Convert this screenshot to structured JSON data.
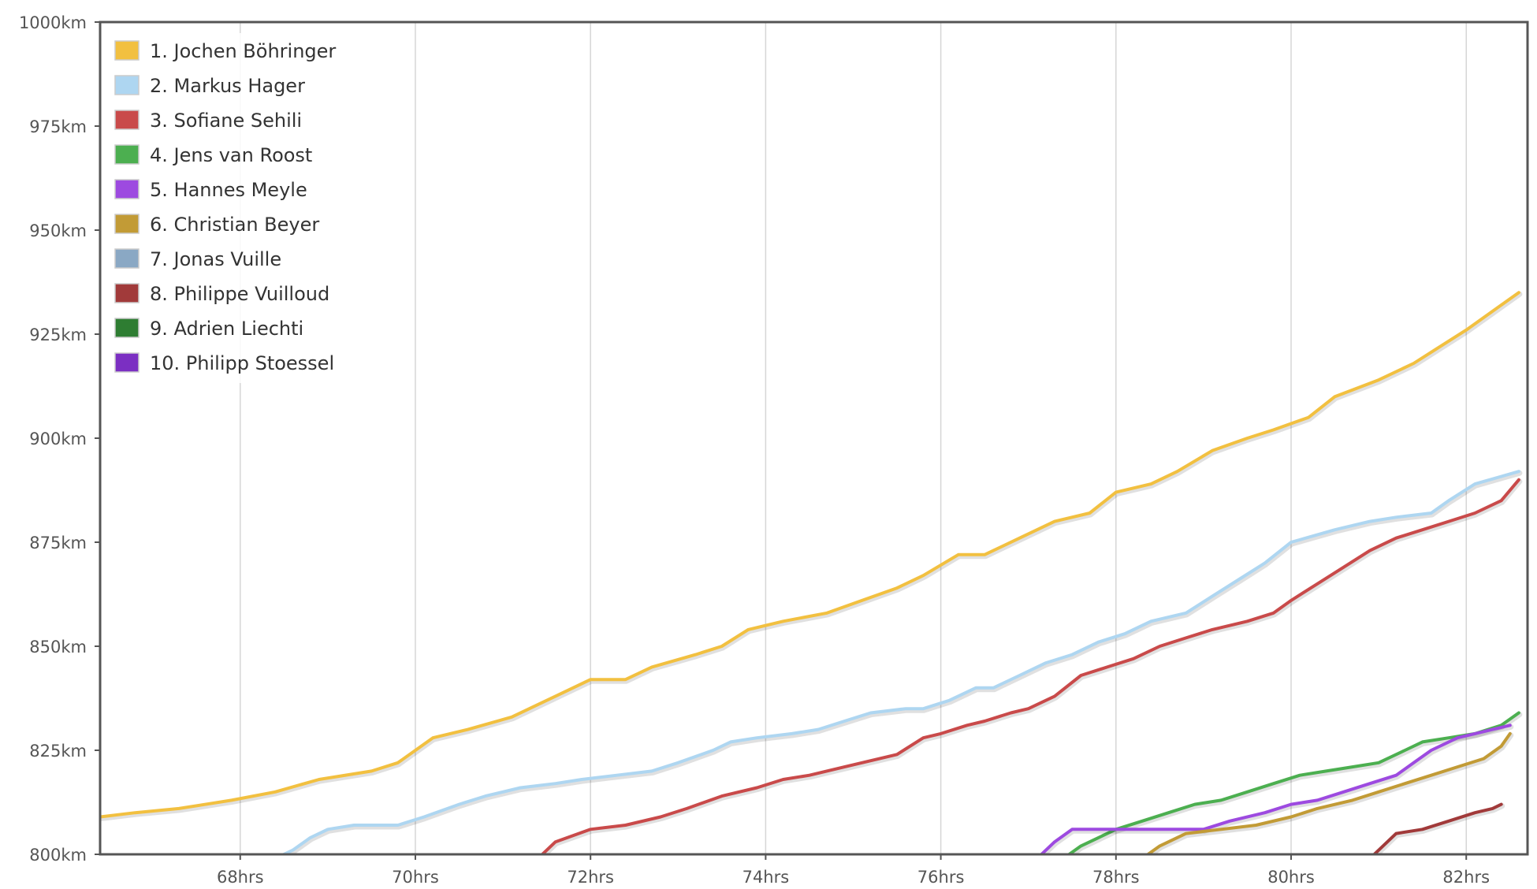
{
  "chart_data": {
    "type": "line",
    "title": "",
    "xlabel": "",
    "ylabel": "",
    "x_unit": "hrs",
    "y_unit": "km",
    "xlim": [
      66.4,
      82.7
    ],
    "ylim": [
      800,
      1000
    ],
    "x_ticks": [
      68,
      70,
      72,
      74,
      76,
      78,
      80,
      82
    ],
    "x_tick_labels": [
      "68hrs",
      "70hrs",
      "72hrs",
      "74hrs",
      "76hrs",
      "78hrs",
      "80hrs",
      "82hrs"
    ],
    "y_ticks": [
      800,
      825,
      850,
      875,
      900,
      925,
      950,
      975,
      1000
    ],
    "y_tick_labels": [
      "800km",
      "825km",
      "850km",
      "875km",
      "900km",
      "925km",
      "950km",
      "975km",
      "1000km"
    ],
    "grid": "vertical",
    "legend_position": "top-left",
    "series": [
      {
        "name": "1. Jochen Böhringer",
        "color": "#f2c040",
        "x": [
          66.4,
          66.8,
          67.3,
          67.9,
          68.4,
          68.9,
          69.5,
          69.8,
          70.2,
          70.6,
          71.1,
          71.6,
          72.0,
          72.4,
          72.7,
          73.2,
          73.5,
          73.8,
          74.2,
          74.7,
          75.1,
          75.5,
          75.8,
          76.2,
          76.5,
          76.9,
          77.3,
          77.7,
          78.0,
          78.4,
          78.7,
          79.1,
          79.5,
          79.8,
          80.2,
          80.5,
          81.0,
          81.4,
          81.7,
          82.0,
          82.6
        ],
        "y": [
          809,
          810,
          811,
          813,
          815,
          818,
          820,
          822,
          828,
          830,
          833,
          838,
          842,
          842,
          845,
          848,
          850,
          854,
          856,
          858,
          861,
          864,
          867,
          872,
          872,
          876,
          880,
          882,
          887,
          889,
          892,
          897,
          900,
          902,
          905,
          910,
          914,
          918,
          922,
          926,
          935
        ]
      },
      {
        "name": "2. Markus Hager",
        "color": "#aed6f1",
        "x": [
          68.4,
          68.6,
          68.8,
          69.0,
          69.3,
          69.8,
          70.1,
          70.5,
          70.8,
          71.2,
          71.6,
          71.9,
          72.3,
          72.7,
          73.0,
          73.4,
          73.6,
          73.9,
          74.3,
          74.6,
          74.9,
          75.2,
          75.6,
          75.8,
          76.1,
          76.4,
          76.6,
          76.9,
          77.2,
          77.5,
          77.8,
          78.1,
          78.4,
          78.8,
          79.1,
          79.4,
          79.7,
          80.0,
          80.5,
          80.9,
          81.2,
          81.6,
          81.8,
          82.1,
          82.6
        ],
        "y": [
          799,
          801,
          804,
          806,
          807,
          807,
          809,
          812,
          814,
          816,
          817,
          818,
          819,
          820,
          822,
          825,
          827,
          828,
          829,
          830,
          832,
          834,
          835,
          835,
          837,
          840,
          840,
          843,
          846,
          848,
          851,
          853,
          856,
          858,
          862,
          866,
          870,
          875,
          878,
          880,
          881,
          882,
          885,
          889,
          892
        ]
      },
      {
        "name": "3. Sofiane Sehili",
        "color": "#c94a4a",
        "x": [
          71.4,
          71.6,
          72.0,
          72.4,
          72.8,
          73.1,
          73.5,
          73.9,
          74.2,
          74.5,
          74.9,
          75.3,
          75.5,
          75.8,
          76.0,
          76.3,
          76.5,
          76.8,
          77.0,
          77.3,
          77.6,
          77.9,
          78.2,
          78.5,
          78.8,
          79.1,
          79.5,
          79.8,
          80.0,
          80.3,
          80.6,
          80.9,
          81.2,
          81.5,
          81.8,
          82.1,
          82.4,
          82.6
        ],
        "y": [
          799,
          803,
          806,
          807,
          809,
          811,
          814,
          816,
          818,
          819,
          821,
          823,
          824,
          828,
          829,
          831,
          832,
          834,
          835,
          838,
          843,
          845,
          847,
          850,
          852,
          854,
          856,
          858,
          861,
          865,
          869,
          873,
          876,
          878,
          880,
          882,
          885,
          890
        ]
      },
      {
        "name": "4. Jens van Roost",
        "color": "#4caf50",
        "x": [
          77.4,
          77.6,
          77.8,
          78.0,
          78.3,
          78.6,
          78.9,
          79.2,
          79.5,
          79.8,
          80.1,
          80.4,
          80.7,
          81.0,
          81.3,
          81.5,
          81.8,
          82.1,
          82.4,
          82.6
        ],
        "y": [
          799,
          802,
          804,
          806,
          808,
          810,
          812,
          813,
          815,
          817,
          819,
          820,
          821,
          822,
          825,
          827,
          828,
          829,
          831,
          834
        ]
      },
      {
        "name": "5. Hannes Meyle",
        "color": "#9d4ae0",
        "x": [
          77.1,
          77.3,
          77.5,
          78.0,
          78.5,
          79.0,
          79.3,
          79.7,
          80.0,
          80.3,
          80.6,
          80.9,
          81.2,
          81.4,
          81.6,
          81.9,
          82.1,
          82.3,
          82.5
        ],
        "y": [
          799,
          803,
          806,
          806,
          806,
          806,
          808,
          810,
          812,
          813,
          815,
          817,
          819,
          822,
          825,
          828,
          829,
          830,
          831
        ]
      },
      {
        "name": "6. Christian Beyer",
        "color": "#c29b36",
        "x": [
          78.3,
          78.5,
          78.8,
          79.2,
          79.6,
          80.0,
          80.3,
          80.7,
          81.0,
          81.3,
          81.6,
          81.9,
          82.2,
          82.4,
          82.5
        ],
        "y": [
          799,
          802,
          805,
          806,
          807,
          809,
          811,
          813,
          815,
          817,
          819,
          821,
          823,
          826,
          829
        ]
      },
      {
        "name": "7. Jonas Vuille",
        "color": "#8aa8c4",
        "x": [],
        "y": []
      },
      {
        "name": "8. Philippe Vuilloud",
        "color": "#a13a3a",
        "x": [
          80.9,
          81.2,
          81.5,
          81.8,
          82.1,
          82.3,
          82.4
        ],
        "y": [
          799,
          805,
          806,
          808,
          810,
          811,
          812
        ]
      },
      {
        "name": "9. Adrien Liechti",
        "color": "#2e7d32",
        "x": [],
        "y": []
      },
      {
        "name": "10. Philipp Stoessel",
        "color": "#7b2fc2",
        "x": [],
        "y": []
      }
    ]
  }
}
